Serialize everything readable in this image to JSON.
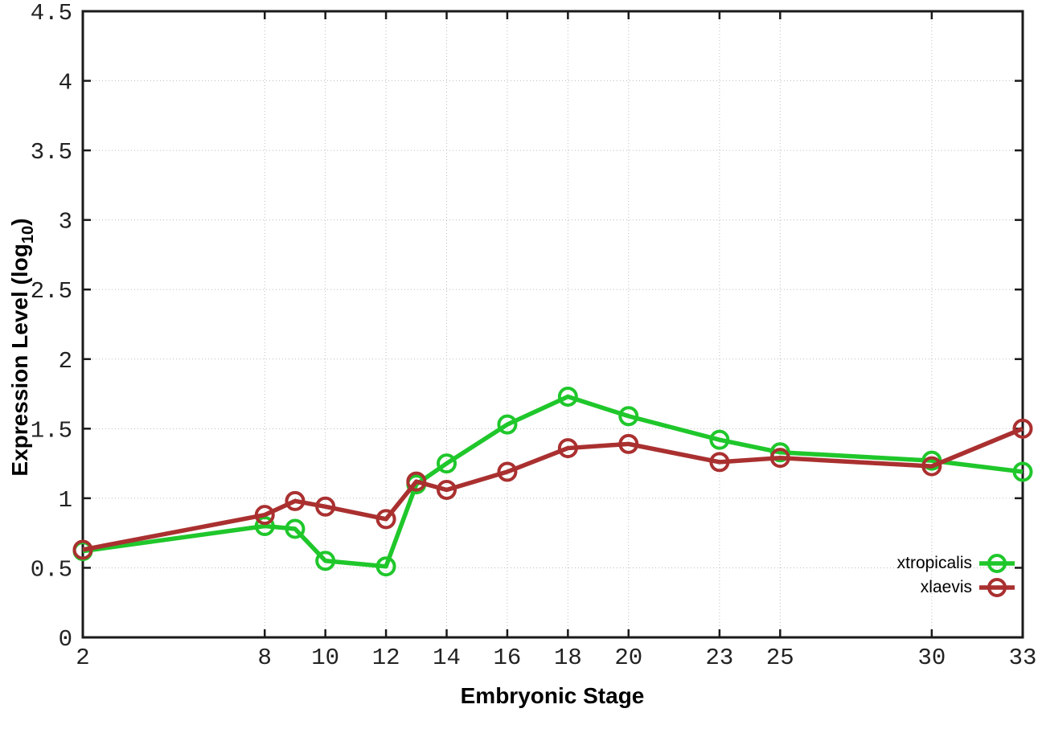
{
  "chart_data": {
    "type": "line",
    "title": "",
    "xlabel": "Embryonic Stage",
    "ylabel": {
      "main": "Expression Level (log",
      "sub": "10",
      "end": ")"
    },
    "x": [
      2,
      8,
      9,
      10,
      12,
      13,
      14,
      16,
      18,
      20,
      23,
      25,
      30,
      33
    ],
    "series": [
      {
        "name": "xtropicalis",
        "color": "#1fc72b",
        "values": [
          0.62,
          0.8,
          0.78,
          0.55,
          0.51,
          1.1,
          1.25,
          1.53,
          1.73,
          1.59,
          1.42,
          1.33,
          1.27,
          1.19
        ]
      },
      {
        "name": "xlaevis",
        "color": "#aa3030",
        "values": [
          0.63,
          0.88,
          0.98,
          0.94,
          0.85,
          1.12,
          1.06,
          1.19,
          1.36,
          1.39,
          1.26,
          1.29,
          1.23,
          1.5
        ]
      }
    ],
    "xlim": [
      2,
      33
    ],
    "ylim": [
      0,
      4.5
    ],
    "x_ticks": [
      2,
      8,
      10,
      12,
      14,
      16,
      18,
      20,
      23,
      25,
      30,
      33
    ],
    "y_ticks": [
      0,
      0.5,
      1,
      1.5,
      2,
      2.5,
      3,
      3.5,
      4,
      4.5
    ],
    "grid": true,
    "legend_position": "bottom-right",
    "marker": "open-circle",
    "colors": {
      "border": "#1a1a1a",
      "grid": "#bdbdbd",
      "tick_label": "#222222"
    }
  }
}
